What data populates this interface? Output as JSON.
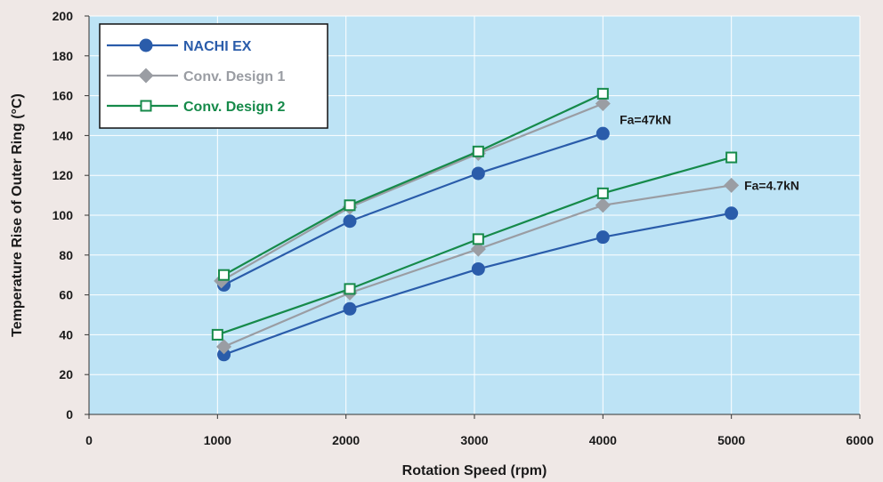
{
  "chart_data": {
    "type": "line",
    "xlabel": "Rotation Speed (rpm)",
    "ylabel": "Temperature Rise of Outer Ring (°C)",
    "xlim": [
      0,
      6000
    ],
    "ylim": [
      0,
      200
    ],
    "x_ticks": [
      "0",
      "1000",
      "2000",
      "3000",
      "4000",
      "5000",
      "6000"
    ],
    "y_ticks": [
      "0",
      "20",
      "40",
      "60",
      "80",
      "100",
      "120",
      "140",
      "160",
      "180",
      "200"
    ],
    "grid": true,
    "legend_position": "top-left",
    "background_color": "#bde3f5",
    "series": [
      {
        "name": "NACHI EX",
        "condition": "Fa=47kN",
        "color": "#2a5caa",
        "marker": "circle",
        "x": [
          1050,
          2030,
          3030,
          4000
        ],
        "y": [
          65,
          97,
          121,
          141
        ]
      },
      {
        "name": "Conv. Design 1",
        "condition": "Fa=47kN",
        "color": "#9a9da3",
        "marker": "diamond",
        "x": [
          1030,
          2030,
          3030,
          4000
        ],
        "y": [
          67,
          104,
          131,
          156
        ]
      },
      {
        "name": "Conv. Design 2",
        "condition": "Fa=47kN",
        "color": "#168a4a",
        "marker": "square-open",
        "x": [
          1050,
          2030,
          3030,
          4000
        ],
        "y": [
          70,
          105,
          132,
          161
        ]
      },
      {
        "name": "NACHI EX",
        "condition": "Fa=4.7kN",
        "color": "#2a5caa",
        "marker": "circle",
        "x": [
          1050,
          2030,
          3030,
          4000,
          5000
        ],
        "y": [
          30,
          53,
          73,
          89,
          101
        ]
      },
      {
        "name": "Conv. Design 1",
        "condition": "Fa=4.7kN",
        "color": "#9a9da3",
        "marker": "diamond",
        "x": [
          1050,
          2030,
          3030,
          4000,
          5000
        ],
        "y": [
          34,
          61,
          83,
          105,
          115
        ]
      },
      {
        "name": "Conv. Design 2",
        "condition": "Fa=4.7kN",
        "color": "#168a4a",
        "marker": "square-open",
        "x": [
          1000,
          2030,
          3030,
          4000,
          5000
        ],
        "y": [
          40,
          63,
          88,
          111,
          129
        ]
      }
    ],
    "legend": [
      {
        "label": "NACHI EX",
        "color": "#2a5caa",
        "marker": "circle"
      },
      {
        "label": "Conv. Design 1",
        "color": "#9a9da3",
        "marker": "diamond"
      },
      {
        "label": "Conv. Design 2",
        "color": "#168a4a",
        "marker": "square-open"
      }
    ],
    "annotations": [
      {
        "text": "Fa=47kN",
        "x": 4130,
        "y": 148
      },
      {
        "text": "Fa=4.7kN",
        "x": 5100,
        "y": 115
      }
    ]
  }
}
